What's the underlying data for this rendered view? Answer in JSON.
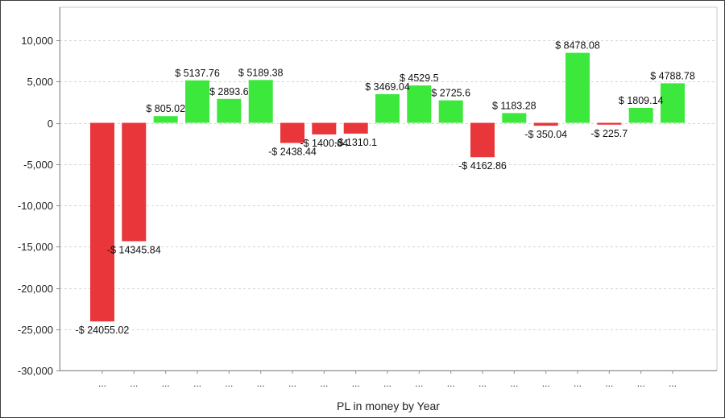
{
  "chart_data": {
    "type": "bar",
    "title": "",
    "xlabel": "PL in money by Year",
    "ylabel": "",
    "ylim": [
      -30000,
      14000
    ],
    "yticks": [
      -30000,
      -25000,
      -20000,
      -15000,
      -10000,
      -5000,
      0,
      5000,
      10000
    ],
    "ytick_labels": [
      "-30,000",
      "-25,000",
      "-20,000",
      "-15,000",
      "-10,000",
      "-5,000",
      "0",
      "5,000",
      "10,000"
    ],
    "grid": true,
    "legend": "none",
    "categories": [
      "...",
      "...",
      "...",
      "...",
      "...",
      "...",
      "...",
      "...",
      "...",
      "...",
      "...",
      "...",
      "...",
      "...",
      "...",
      "...",
      "...",
      "...",
      "..."
    ],
    "values": [
      -24055.02,
      -14345.84,
      805.02,
      5137.76,
      2893.6,
      5189.38,
      -2438.44,
      -1400.84,
      -1310.1,
      3469.04,
      4529.5,
      2725.6,
      -4162.86,
      1183.28,
      -350.04,
      8478.08,
      -225.7,
      1809.14,
      4788.78
    ],
    "data_labels": [
      "-$ 24055.02",
      "-$ 14345.84",
      "$ 805.02",
      "$ 5137.76",
      "$ 2893.6",
      "$ 5189.38",
      "-$ 2438.44",
      "-$ 1400.84",
      "-$ 1310.1",
      "$ 3469.04",
      "$ 4529.5",
      "$ 2725.6",
      "-$ 4162.86",
      "$ 1183.28",
      "-$ 350.04",
      "$ 8478.08",
      "-$ 225.7",
      "$ 1809.14",
      "$ 4788.78"
    ],
    "colors": {
      "positive": "#3de83d",
      "negative": "#e8363b",
      "grid": "#d4d4d4",
      "axis": "#8c8c8c"
    }
  }
}
